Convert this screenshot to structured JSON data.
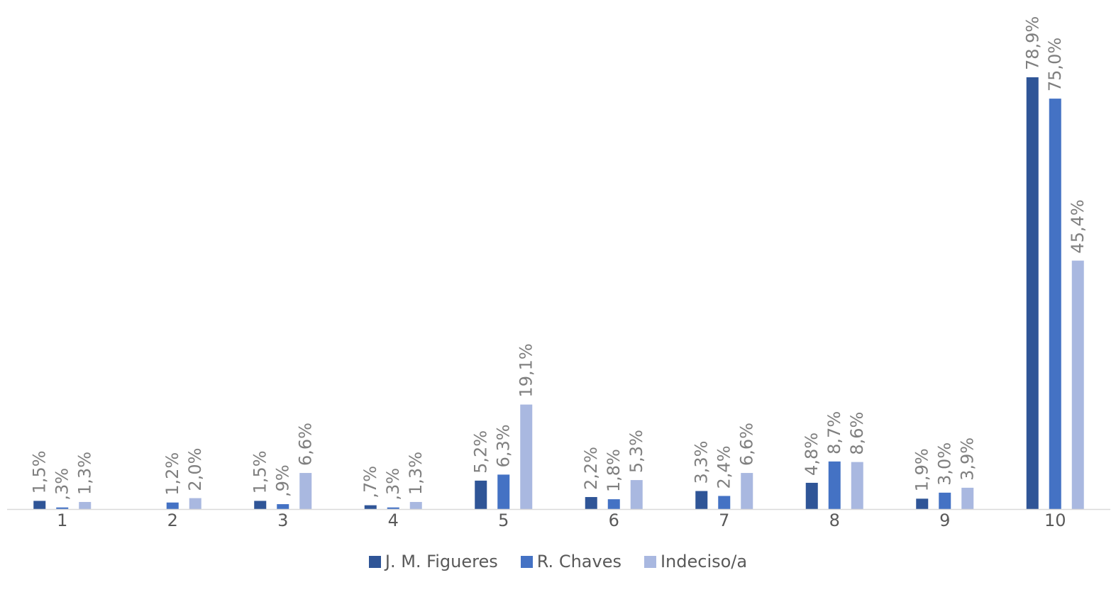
{
  "chart_data": {
    "type": "bar",
    "categories": [
      "1",
      "2",
      "3",
      "4",
      "5",
      "6",
      "7",
      "8",
      "9",
      "10"
    ],
    "series": [
      {
        "name": "J. M. Figueres",
        "color": "#2f5597",
        "values": [
          1.5,
          0,
          1.5,
          0.7,
          5.2,
          2.2,
          3.3,
          4.8,
          1.9,
          78.9
        ],
        "labels": [
          "1,5%",
          "",
          "1,5%",
          ",7%",
          "5,2%",
          "2,2%",
          "3,3%",
          "4,8%",
          "1,9%",
          "78,9%"
        ]
      },
      {
        "name": "R. Chaves",
        "color": "#4472c4",
        "values": [
          0.3,
          1.2,
          0.9,
          0.3,
          6.3,
          1.8,
          2.4,
          8.7,
          3.0,
          75.0
        ],
        "labels": [
          ",3%",
          "1,2%",
          ",9%",
          ",3%",
          "6,3%",
          "1,8%",
          "2,4%",
          "8,7%",
          "3,0%",
          "75,0%"
        ]
      },
      {
        "name": "Indeciso/a",
        "color": "#a9b8e0",
        "values": [
          1.3,
          2.0,
          6.6,
          1.3,
          19.1,
          5.3,
          6.6,
          8.6,
          3.9,
          45.4
        ],
        "labels": [
          "1,3%",
          "2,0%",
          "6,6%",
          "1,3%",
          "19,1%",
          "5,3%",
          "6,6%",
          "8,6%",
          "3,9%",
          "45,4%"
        ]
      }
    ],
    "ylim": [
      0,
      80
    ],
    "axis_color": "#d9d9d9",
    "legend_position": "bottom"
  }
}
